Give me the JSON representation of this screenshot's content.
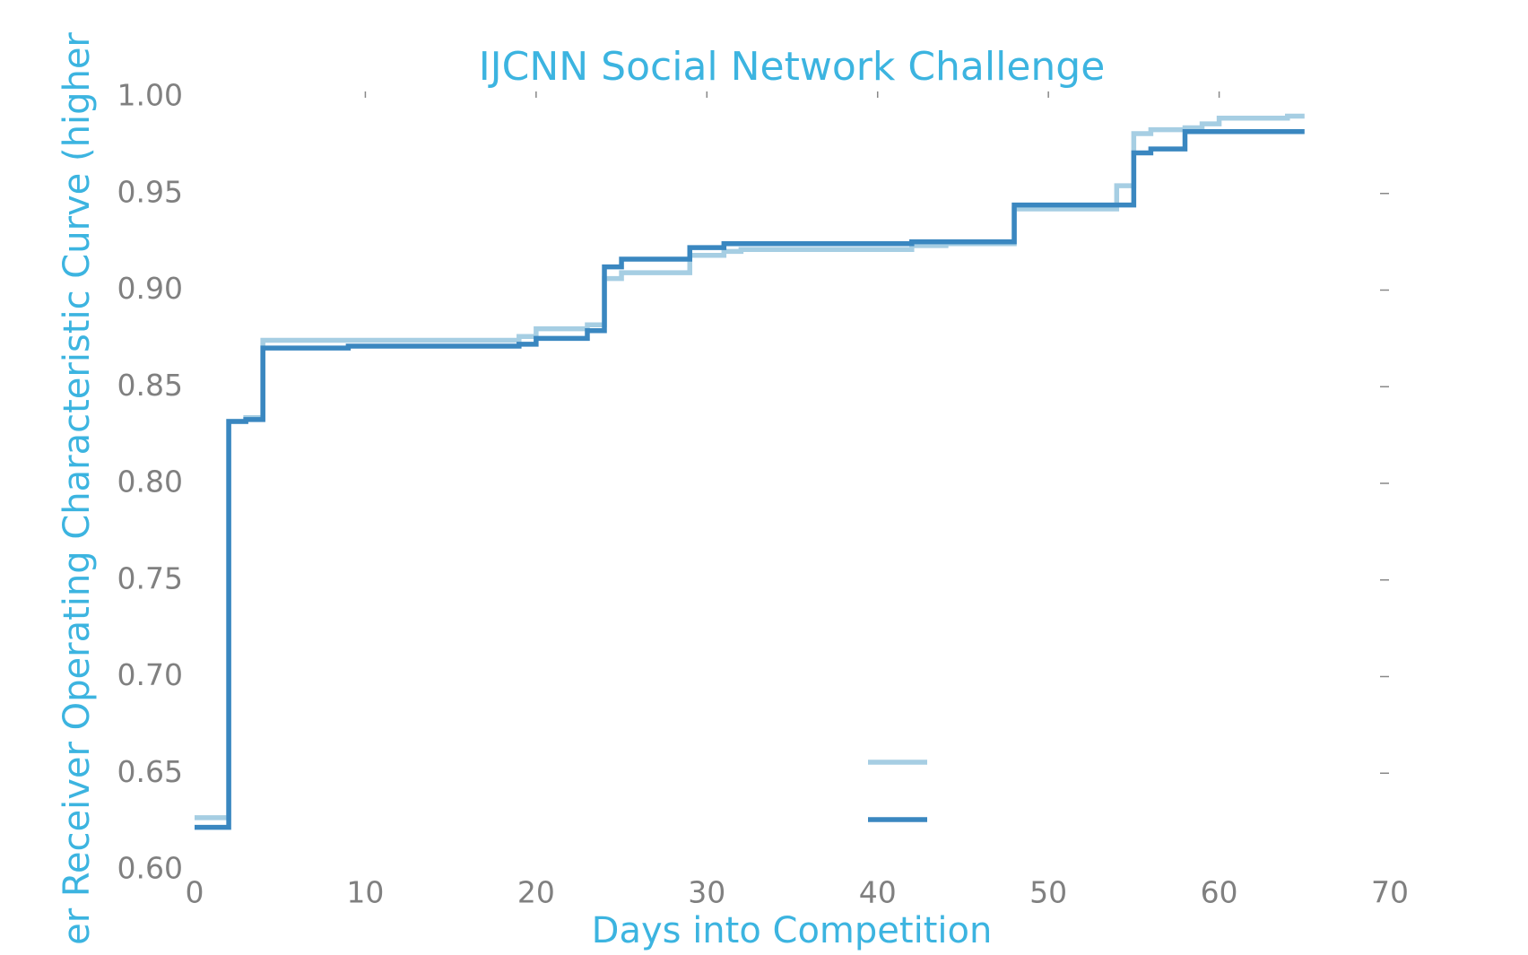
{
  "chart_data": {
    "type": "line",
    "drawstyle": "steps-post",
    "title": "IJCNN Social Network Challenge",
    "xlabel": "Days into Competition",
    "ylabel": "er Receiver Operating Characteristic Curve (higher",
    "series": [
      {
        "color": "#a6cee3",
        "x": [
          0,
          2,
          3,
          4,
          19,
          20,
          23,
          24,
          25,
          29,
          31,
          32,
          39,
          42,
          44,
          48,
          54,
          55,
          56,
          58,
          59,
          60,
          64,
          65
        ],
        "values": [
          0.627,
          0.832,
          0.834,
          0.874,
          0.876,
          0.88,
          0.882,
          0.906,
          0.909,
          0.918,
          0.92,
          0.921,
          0.921,
          0.923,
          0.924,
          0.942,
          0.954,
          0.981,
          0.983,
          0.984,
          0.986,
          0.989,
          0.99,
          0.99
        ]
      },
      {
        "color": "#3a87c0",
        "x": [
          0,
          2,
          3,
          4,
          9,
          19,
          20,
          23,
          24,
          25,
          29,
          31,
          42,
          48,
          55,
          56,
          58,
          65
        ],
        "values": [
          0.622,
          0.832,
          0.833,
          0.87,
          0.871,
          0.872,
          0.875,
          0.879,
          0.912,
          0.916,
          0.922,
          0.924,
          0.925,
          0.944,
          0.971,
          0.973,
          0.982,
          0.982
        ]
      }
    ],
    "xlim": [
      0,
      70
    ],
    "xticks": [
      0,
      10,
      20,
      30,
      40,
      50,
      60,
      70
    ],
    "ylim": [
      0.6,
      1.0
    ],
    "yticks": [
      {
        "value": 0.6,
        "label": "0.60"
      },
      0.65,
      {
        "value": 0.7,
        "label": "0.70"
      },
      0.75,
      {
        "value": 0.8,
        "label": "0.80"
      },
      0.85,
      {
        "value": 0.9,
        "label": "0.90"
      },
      0.95,
      {
        "value": 1.0,
        "label": "1.00"
      }
    ],
    "legend": "lower center",
    "grid": false
  }
}
